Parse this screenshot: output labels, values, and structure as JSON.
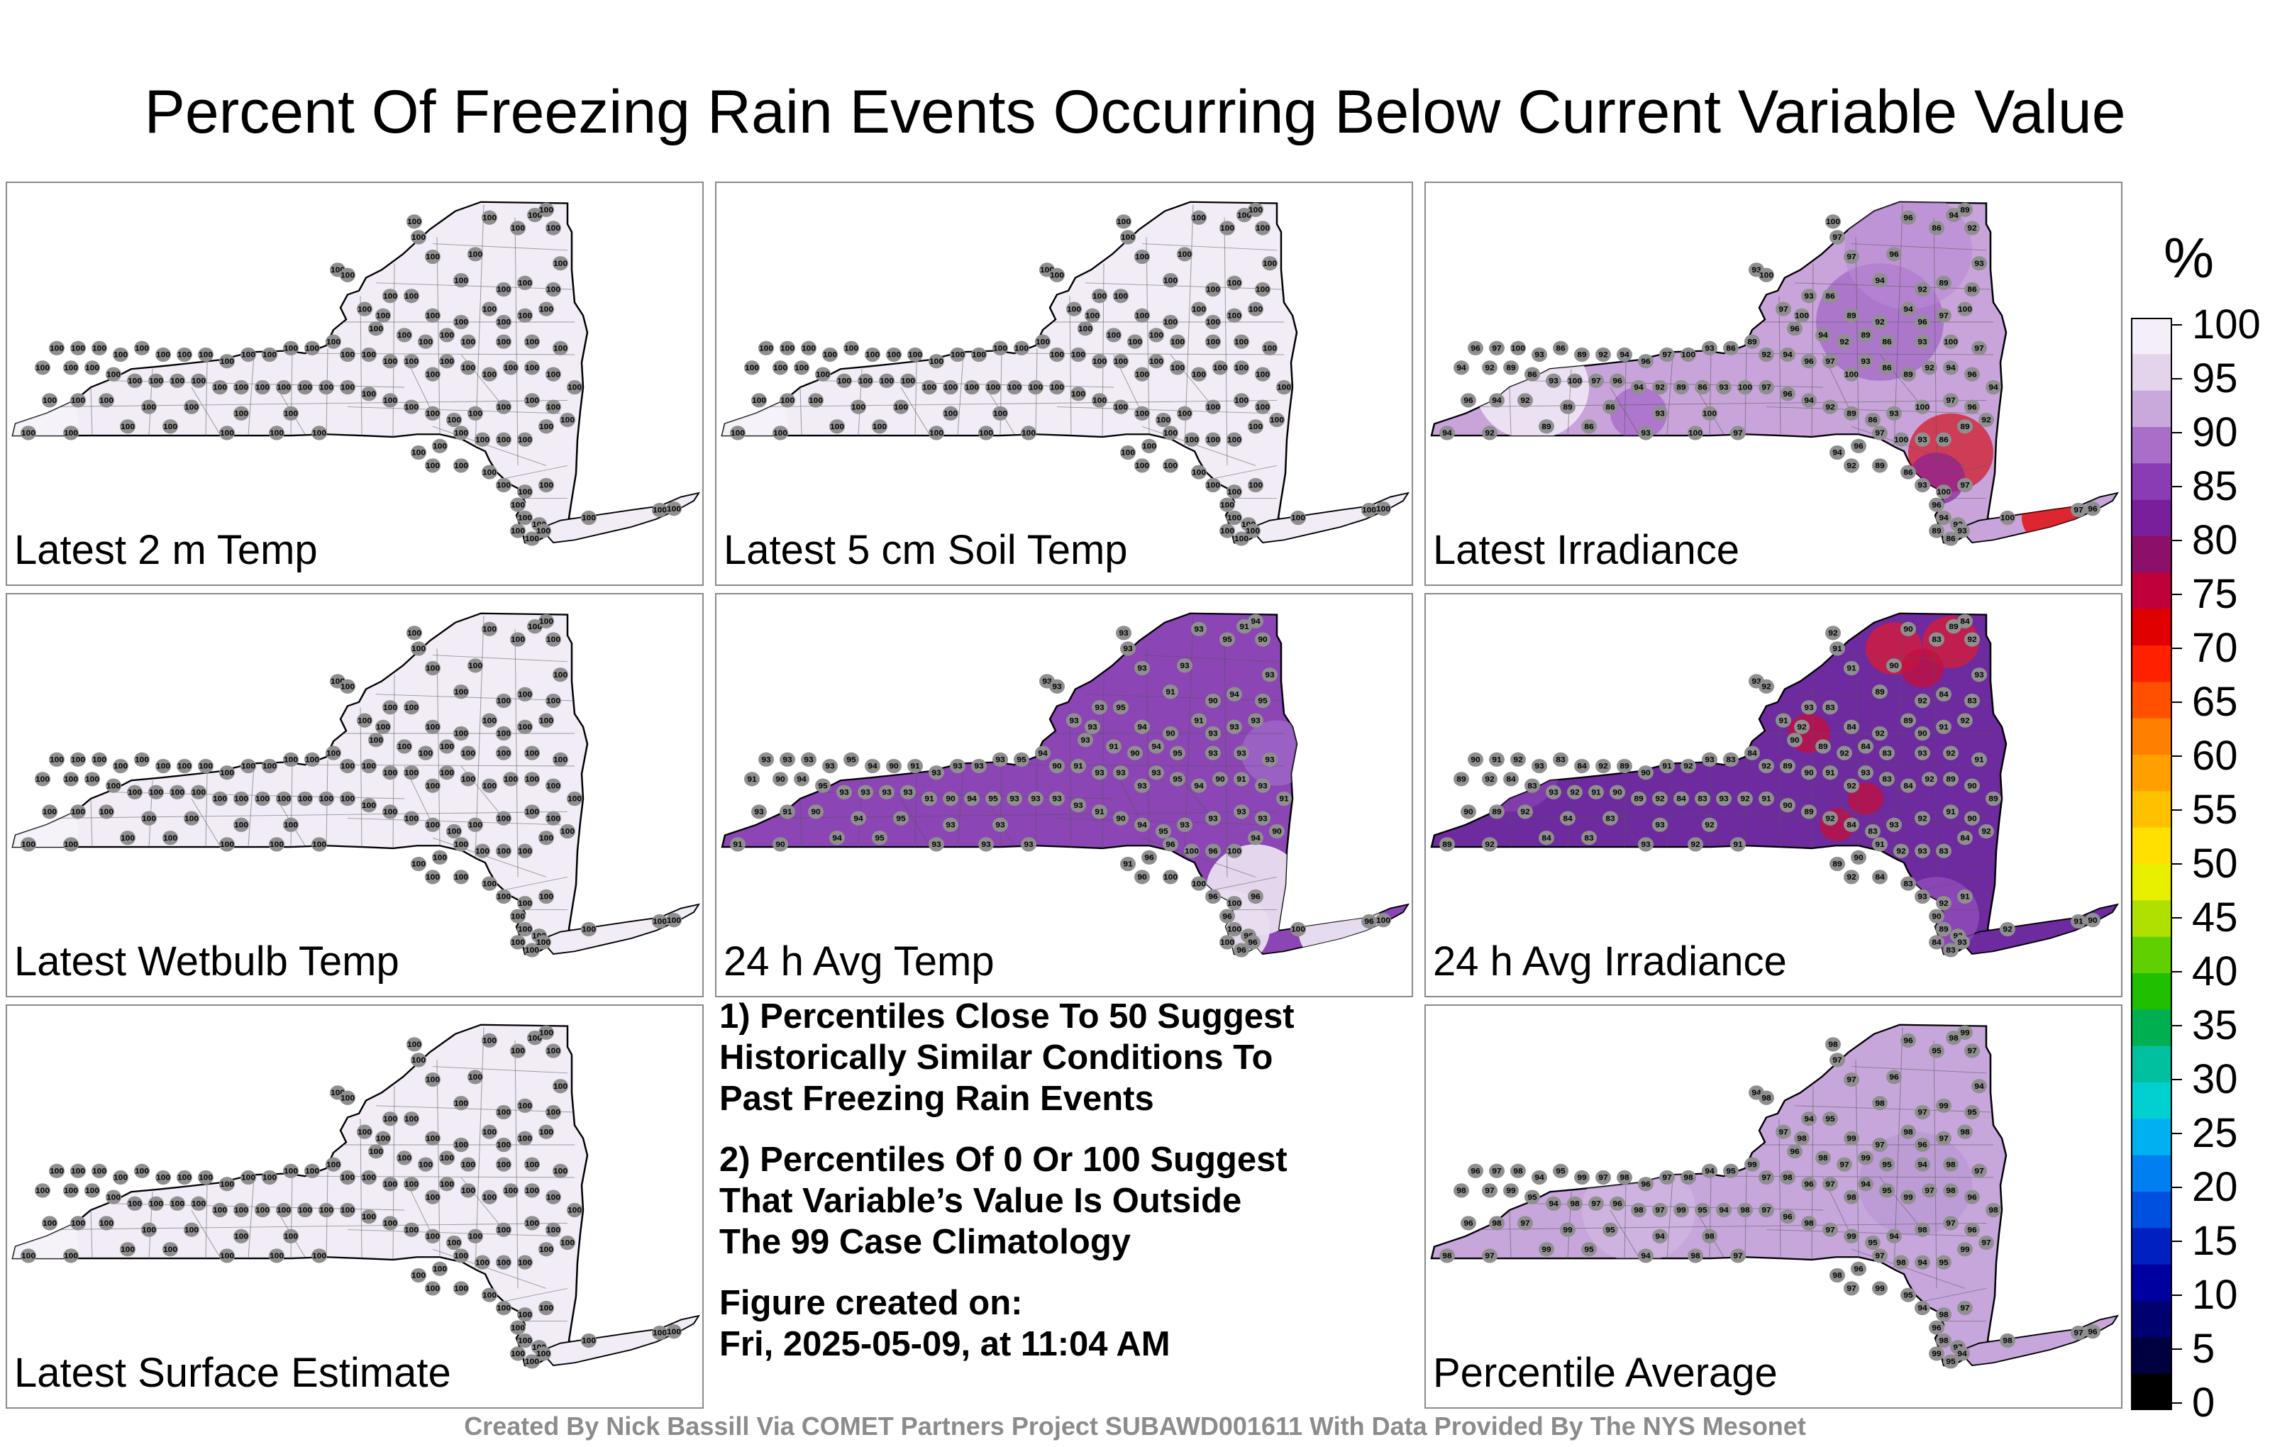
{
  "title": "Percent Of Freezing Rain Events Occurring Below Current Variable Value",
  "panels": [
    {
      "label": "Latest 2 m Temp",
      "style": "uniform100"
    },
    {
      "label": "Latest 5 cm Soil Temp",
      "style": "uniform100"
    },
    {
      "label": "Latest Irradiance",
      "style": "irradiance"
    },
    {
      "label": "Latest Wetbulb Temp",
      "style": "uniform100"
    },
    {
      "label": "24 h Avg Temp",
      "style": "avgtemp"
    },
    {
      "label": "24 h Avg Irradiance",
      "style": "avgirr"
    },
    {
      "label": "Latest Surface Estimate",
      "style": "uniform100"
    },
    {
      "label": "Percentile Average",
      "style": "average"
    }
  ],
  "notes": {
    "line1": "1) Percentiles Close To 50 Suggest",
    "line2": "Historically Similar Conditions To",
    "line3": "Past Freezing Rain Events",
    "line4": "2) Percentiles Of 0 Or 100 Suggest",
    "line5": "That Variable’s Value Is Outside",
    "line6": "The 99 Case Climatology",
    "fig1": "Figure created on:",
    "fig2": "Fri, 2025-05-09, at 11:04 AM"
  },
  "credit": "Created By Nick Bassill Via COMET Partners Project SUBAWD001611 With Data Provided By The NYS Mesonet",
  "colorbar": {
    "unit": "%",
    "ticks": [
      "100",
      "95",
      "90",
      "85",
      "80",
      "75",
      "70",
      "65",
      "60",
      "55",
      "50",
      "45",
      "40",
      "35",
      "30",
      "25",
      "20",
      "15",
      "10",
      "5",
      "0"
    ],
    "colors": [
      "#f3eef7",
      "#e3d4ec",
      "#c9a8dc",
      "#a96fc8",
      "#8a3cb4",
      "#7a1f9c",
      "#8c0f6a",
      "#c0003a",
      "#e00000",
      "#ff2000",
      "#ff5000",
      "#ff8000",
      "#ffa000",
      "#ffc000",
      "#ffe000",
      "#e8f000",
      "#b0e000",
      "#60d000",
      "#20c000",
      "#00b050",
      "#00c0a0",
      "#00d0d0",
      "#00b0f0",
      "#0080f0",
      "#0050e0",
      "#0020c0",
      "#0000a0",
      "#000070",
      "#000040",
      "#000000"
    ]
  }
}
